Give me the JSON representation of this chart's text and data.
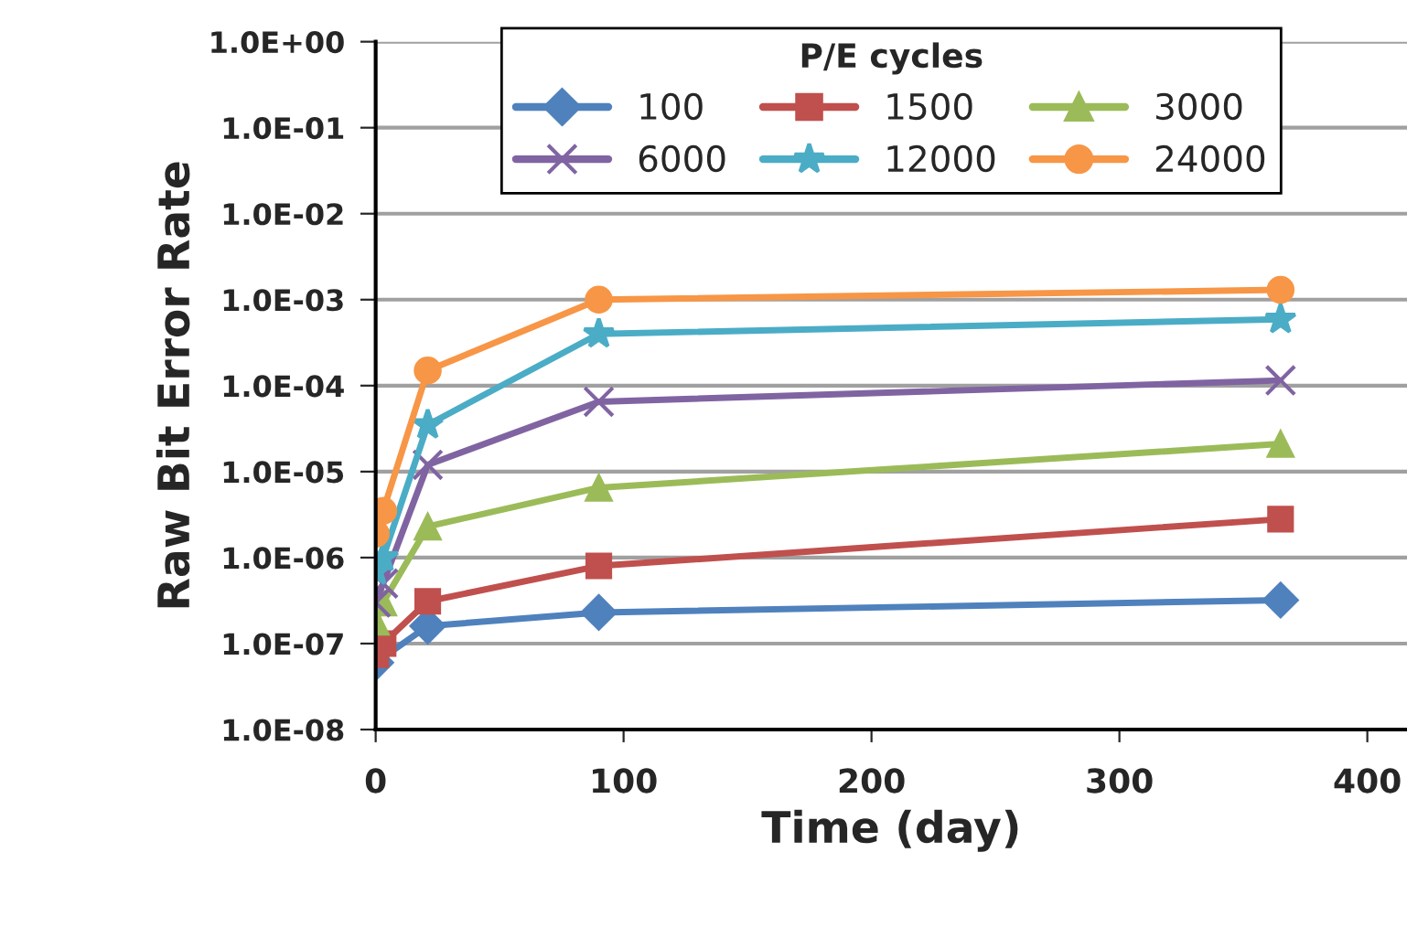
{
  "chart_data": {
    "type": "line",
    "xlabel": "Time (day)",
    "ylabel": "Raw Bit Error Rate",
    "legend_title": "P/E cycles",
    "legend": "top",
    "grid": "y",
    "log": "y",
    "xlim": [
      0,
      416
    ],
    "xticks": [
      0,
      100,
      200,
      300,
      400
    ],
    "ylim": [
      1e-08,
      1
    ],
    "yticks": [
      {
        "value": 1e-08,
        "label": "1.0E-08"
      },
      {
        "value": 1e-07,
        "label": "1.0E-07"
      },
      {
        "value": 1e-06,
        "label": "1.0E-06"
      },
      {
        "value": 1e-05,
        "label": "1.0E-05"
      },
      {
        "value": 0.0001,
        "label": "1.0E-04"
      },
      {
        "value": 0.001,
        "label": "1.0E-03"
      },
      {
        "value": 0.01,
        "label": "1.0E-02"
      },
      {
        "value": 0.1,
        "label": "1.0E-01"
      },
      {
        "value": 1,
        "label": "1.0E+00"
      }
    ],
    "x": [
      0,
      3,
      21,
      90,
      365
    ],
    "series": [
      {
        "name": "100",
        "color": "#4f81bd",
        "marker": "diamond",
        "values": [
          6e-08,
          null,
          1.6e-07,
          2.3e-07,
          3.2e-07
        ]
      },
      {
        "name": "1500",
        "color": "#c0504d",
        "marker": "square",
        "values": [
          7.4e-08,
          1e-07,
          3.1e-07,
          8e-07,
          2.8e-06
        ]
      },
      {
        "name": "3000",
        "color": "#9bbb59",
        "marker": "triangle",
        "values": [
          1.8e-07,
          3e-07,
          2.3e-06,
          6.5e-06,
          2.1e-05
        ]
      },
      {
        "name": "6000",
        "color": "#8064a2",
        "marker": "cross",
        "values": [
          3e-07,
          5e-07,
          1.2e-05,
          6.5e-05,
          0.000115
        ]
      },
      {
        "name": "12000",
        "color": "#4bacc6",
        "marker": "star",
        "values": [
          7e-07,
          1e-06,
          3.5e-05,
          0.0004,
          0.00059
        ]
      },
      {
        "name": "24000",
        "color": "#f79646",
        "marker": "circle",
        "values": [
          1.9e-06,
          3.5e-06,
          0.00015,
          0.001,
          0.0013
        ]
      }
    ]
  }
}
